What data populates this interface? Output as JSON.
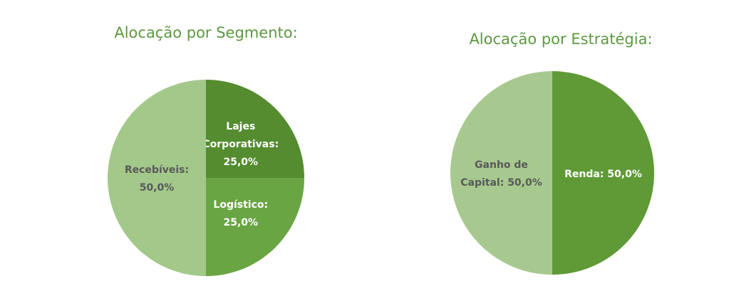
{
  "chart_data": [
    {
      "type": "pie",
      "title": "Alocação por Segmento:",
      "categories": [
        "Lajes Corporativas",
        "Logístico",
        "Recebíveis"
      ],
      "values": [
        25,
        25,
        50
      ],
      "value_labels": [
        ": 25,0%",
        ": 25,0%",
        ": 50,0%"
      ],
      "colors": [
        "#548c2f",
        "#6aa543",
        "#a3c98a"
      ]
    },
    {
      "type": "pie",
      "title": "Alocação por Estratégia:",
      "categories": [
        "Renda",
        "Ganho de Capital"
      ],
      "values": [
        50,
        50
      ],
      "value_labels": [
        ": 50,0%",
        ": 50,0%"
      ],
      "colors": [
        "#5f9a36",
        "#a7c98f"
      ]
    }
  ]
}
